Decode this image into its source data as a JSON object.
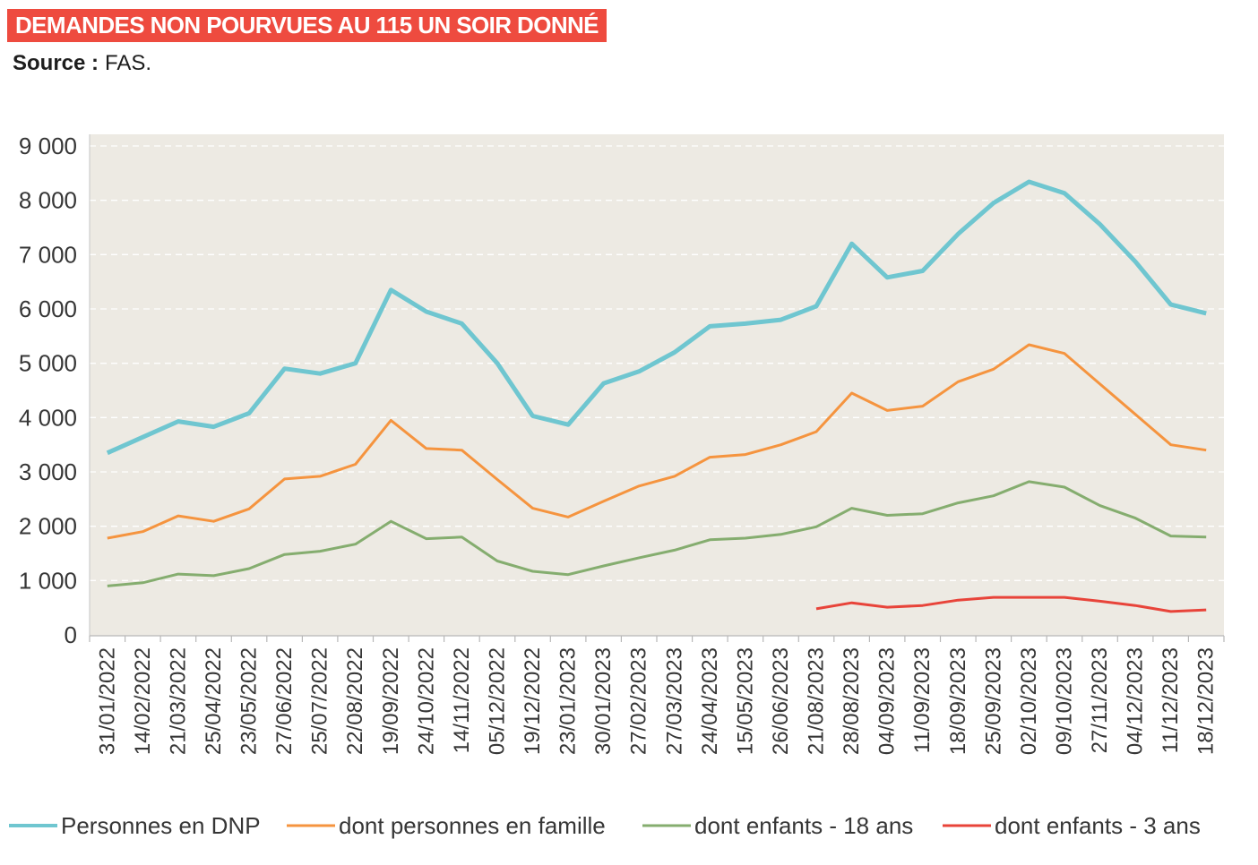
{
  "theme": {
    "title_background": "#ee4b3f",
    "plot_background": "#edeae3"
  },
  "chart_data": {
    "type": "line",
    "title": "DEMANDES NON POURVUES AU 115 UN SOIR DONNÉ",
    "source_label": "Source :",
    "source": "FAS.",
    "grid": true,
    "legend": "bottom",
    "ylim": [
      0,
      9000
    ],
    "yticks": [
      {
        "value": 0,
        "label": "0"
      },
      {
        "value": 1000,
        "label": "1 000"
      },
      {
        "value": 2000,
        "label": "2 000"
      },
      {
        "value": 3000,
        "label": "3 000"
      },
      {
        "value": 4000,
        "label": "4 000"
      },
      {
        "value": 5000,
        "label": "5 000"
      },
      {
        "value": 6000,
        "label": "6 000"
      },
      {
        "value": 7000,
        "label": "7 000"
      },
      {
        "value": 8000,
        "label": "8 000"
      },
      {
        "value": 9000,
        "label": "9 000"
      }
    ],
    "categories": [
      "31/01/2022",
      "14/02/2022",
      "21/03/2022",
      "25/04/2022",
      "23/05/2022",
      "27/06/2022",
      "25/07/2022",
      "22/08/2022",
      "19/09/2022",
      "24/10/2022",
      "14/11/2022",
      "05/12/2022",
      "19/12/2022",
      "23/01/2023",
      "30/01/2023",
      "27/02/2023",
      "27/03/2023",
      "24/04/2023",
      "15/05/2023",
      "26/06/2023",
      "21/08/2023",
      "28/08/2023",
      "04/09/2023",
      "11/09/2023",
      "18/09/2023",
      "25/09/2023",
      "02/10/2023",
      "09/10/2023",
      "27/11/2023",
      "04/12/2023",
      "11/12/2023",
      "18/12/2023"
    ],
    "series": [
      {
        "name": "Personnes en DNP",
        "color": "#6fc6d0",
        "values": [
          3350,
          3640,
          3930,
          3830,
          4080,
          4900,
          4810,
          5000,
          6350,
          5950,
          5730,
          5000,
          4030,
          3870,
          4630,
          4850,
          5200,
          5680,
          5730,
          5800,
          6050,
          7200,
          6580,
          6700,
          7380,
          7950,
          8340,
          8130,
          7560,
          6870,
          6080,
          5920
        ]
      },
      {
        "name": "dont personnes en famille",
        "color": "#f5943f",
        "values": [
          1780,
          1900,
          2190,
          2090,
          2320,
          2870,
          2920,
          3140,
          3950,
          3430,
          3400,
          2860,
          2330,
          2170,
          2460,
          2740,
          2920,
          3270,
          3320,
          3500,
          3740,
          4450,
          4130,
          4210,
          4660,
          4890,
          5340,
          5180,
          4620,
          4060,
          3500,
          3400
        ]
      },
      {
        "name": "dont enfants - 18 ans",
        "color": "#85ad6f",
        "values": [
          900,
          960,
          1120,
          1090,
          1220,
          1480,
          1540,
          1670,
          2090,
          1770,
          1800,
          1360,
          1170,
          1110,
          1270,
          1420,
          1560,
          1750,
          1780,
          1850,
          1990,
          2330,
          2200,
          2230,
          2430,
          2560,
          2820,
          2720,
          2380,
          2150,
          1820,
          1800
        ]
      },
      {
        "name": "dont enfants - 3 ans",
        "color": "#e8443a",
        "values": [
          null,
          null,
          null,
          null,
          null,
          null,
          null,
          null,
          null,
          null,
          null,
          null,
          null,
          null,
          null,
          null,
          null,
          null,
          null,
          null,
          480,
          590,
          510,
          540,
          640,
          690,
          690,
          690,
          620,
          540,
          430,
          460
        ]
      }
    ]
  }
}
